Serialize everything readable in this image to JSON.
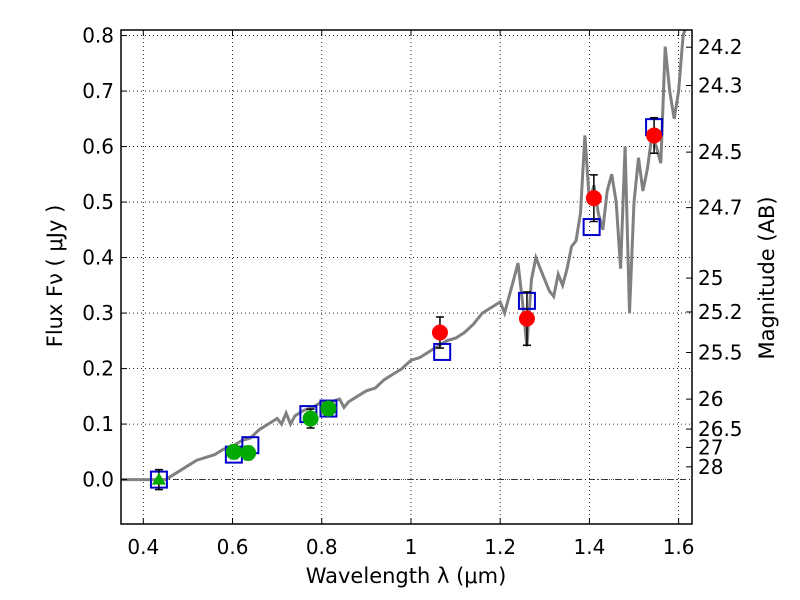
{
  "chart_data": {
    "type": "scatter",
    "xlabel": "Wavelength  λ (μm)",
    "ylabel": "Flux  Fν  ( μJy )",
    "y2label": "Magnitude (AB)",
    "xlim": [
      0.35,
      1.63
    ],
    "ylim": [
      -0.08,
      0.81
    ],
    "grid": true,
    "x_ticks": [
      0.4,
      0.6,
      0.8,
      1.0,
      1.2,
      1.4,
      1.6
    ],
    "x_tick_labels": [
      "0.4",
      "0.6",
      "0.8",
      "1",
      "1.2",
      "1.4",
      "1.6"
    ],
    "y_ticks": [
      0.0,
      0.1,
      0.2,
      0.3,
      0.4,
      0.5,
      0.6,
      0.7,
      0.8
    ],
    "y_tick_labels": [
      "0.0",
      "0.1",
      "0.2",
      "0.3",
      "0.4",
      "0.5",
      "0.6",
      "0.7",
      "0.8"
    ],
    "mag_ticks": [
      {
        "label": "24.2",
        "flux": 0.779
      },
      {
        "label": "24.3",
        "flux": 0.71
      },
      {
        "label": "24.5",
        "flux": 0.59
      },
      {
        "label": "24.7",
        "flux": 0.49
      },
      {
        "label": "25",
        "flux": 0.363
      },
      {
        "label": "25.2",
        "flux": 0.302
      },
      {
        "label": "25.5",
        "flux": 0.229
      },
      {
        "label": "26",
        "flux": 0.145
      },
      {
        "label": "26.5",
        "flux": 0.091
      },
      {
        "label": "27",
        "flux": 0.058
      },
      {
        "label": "28",
        "flux": 0.023
      }
    ],
    "model_spectrum": {
      "color": "#808080",
      "x": [
        0.35,
        0.45,
        0.46,
        0.48,
        0.5,
        0.52,
        0.54,
        0.56,
        0.58,
        0.6,
        0.62,
        0.64,
        0.66,
        0.68,
        0.7,
        0.71,
        0.72,
        0.73,
        0.74,
        0.75,
        0.76,
        0.78,
        0.8,
        0.82,
        0.84,
        0.85,
        0.86,
        0.88,
        0.9,
        0.92,
        0.94,
        0.96,
        0.98,
        1.0,
        1.02,
        1.04,
        1.06,
        1.08,
        1.1,
        1.12,
        1.14,
        1.16,
        1.18,
        1.2,
        1.21,
        1.22,
        1.23,
        1.24,
        1.25,
        1.26,
        1.27,
        1.28,
        1.29,
        1.3,
        1.31,
        1.32,
        1.33,
        1.34,
        1.35,
        1.36,
        1.37,
        1.38,
        1.39,
        1.4,
        1.41,
        1.42,
        1.43,
        1.44,
        1.45,
        1.46,
        1.47,
        1.48,
        1.49,
        1.5,
        1.51,
        1.52,
        1.53,
        1.54,
        1.55,
        1.56,
        1.57,
        1.58,
        1.59,
        1.6,
        1.61,
        1.63
      ],
      "y": [
        0.0,
        0.0,
        0.005,
        0.015,
        0.025,
        0.035,
        0.04,
        0.045,
        0.055,
        0.06,
        0.07,
        0.075,
        0.09,
        0.1,
        0.11,
        0.1,
        0.12,
        0.1,
        0.115,
        0.12,
        0.125,
        0.13,
        0.14,
        0.14,
        0.145,
        0.13,
        0.14,
        0.15,
        0.16,
        0.165,
        0.18,
        0.19,
        0.2,
        0.215,
        0.22,
        0.23,
        0.24,
        0.25,
        0.255,
        0.265,
        0.28,
        0.3,
        0.31,
        0.32,
        0.3,
        0.33,
        0.36,
        0.39,
        0.32,
        0.24,
        0.36,
        0.4,
        0.38,
        0.36,
        0.34,
        0.33,
        0.37,
        0.35,
        0.38,
        0.42,
        0.43,
        0.48,
        0.62,
        0.5,
        0.53,
        0.48,
        0.45,
        0.52,
        0.55,
        0.5,
        0.38,
        0.6,
        0.3,
        0.5,
        0.58,
        0.52,
        0.56,
        0.62,
        0.6,
        0.57,
        0.78,
        0.7,
        0.65,
        0.7,
        0.8,
        0.85
      ]
    },
    "observed_red": {
      "color": "#ff0000",
      "points": [
        {
          "x": 1.065,
          "y": 0.265,
          "err": 0.028
        },
        {
          "x": 1.26,
          "y": 0.29,
          "err": 0.048
        },
        {
          "x": 1.41,
          "y": 0.507,
          "err": 0.042
        },
        {
          "x": 1.545,
          "y": 0.62,
          "err": 0.032
        }
      ]
    },
    "observed_green": {
      "color": "#00aa00",
      "points": [
        {
          "x": 0.603,
          "y": 0.05,
          "err": 0.012
        },
        {
          "x": 0.635,
          "y": 0.048,
          "err": 0.012
        },
        {
          "x": 0.775,
          "y": 0.11,
          "err": 0.017
        },
        {
          "x": 0.815,
          "y": 0.128,
          "err": 0.012
        }
      ]
    },
    "upper_limit_triangle": {
      "color": "#00aa00",
      "x": 0.435,
      "y": 0.0,
      "err": 0.018
    },
    "model_boxes": {
      "color": "#0000cc",
      "points": [
        {
          "x": 0.435,
          "y": 0.0
        },
        {
          "x": 0.603,
          "y": 0.045
        },
        {
          "x": 0.64,
          "y": 0.062
        },
        {
          "x": 0.77,
          "y": 0.118
        },
        {
          "x": 0.815,
          "y": 0.128
        },
        {
          "x": 1.07,
          "y": 0.23
        },
        {
          "x": 1.26,
          "y": 0.322
        },
        {
          "x": 1.405,
          "y": 0.455
        },
        {
          "x": 1.545,
          "y": 0.635
        }
      ]
    }
  }
}
